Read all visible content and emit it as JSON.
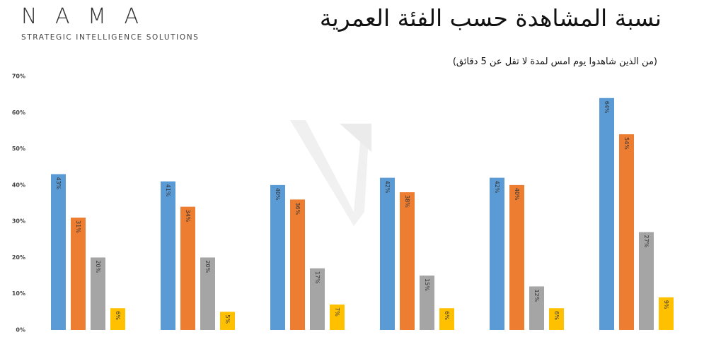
{
  "chart_data": {
    "type": "bar",
    "brand": "N A M A",
    "tagline": "STRATEGIC INTELLIGENCE SOLUTIONS",
    "title": "نسبة المشاهدة حسب الفئة العمرية",
    "subtitle": "(من الذين شاهدوا يوم امس لمدة لا تقل عن 5 دقائق)",
    "categories": [
      null,
      null,
      null,
      null,
      null,
      null
    ],
    "series": [
      {
        "color": "#5b9bd5",
        "values": [
          43,
          41,
          40,
          42,
          42,
          64
        ],
        "value_labels": [
          "43%",
          "41%",
          "40%",
          "42%",
          "42%",
          "64%"
        ]
      },
      {
        "color": "#ed7d31",
        "values": [
          31,
          34,
          36,
          38,
          40,
          54
        ],
        "value_labels": [
          "31%",
          "34%",
          "36%",
          "38%",
          "40%",
          "54%"
        ]
      },
      {
        "color": "#a5a5a5",
        "values": [
          20,
          20,
          17,
          15,
          12,
          27
        ],
        "value_labels": [
          "20%",
          "20%",
          "17%",
          "15%",
          "12%",
          "27%"
        ]
      },
      {
        "color": "#ffc000",
        "values": [
          6,
          5,
          7,
          6,
          6,
          9
        ],
        "value_labels": [
          "6%",
          "5%",
          "7%",
          "6%",
          "6%",
          "9%"
        ]
      }
    ],
    "ylim": [
      0,
      70
    ],
    "yticks": [
      {
        "value": 0,
        "label": "0%"
      },
      {
        "value": 10,
        "label": "10%"
      },
      {
        "value": 20,
        "label": "20%"
      },
      {
        "value": 30,
        "label": "30%"
      },
      {
        "value": 40,
        "label": "40%"
      },
      {
        "value": 50,
        "label": "50%"
      },
      {
        "value": 60,
        "label": "60%"
      },
      {
        "value": 70,
        "label": "70%"
      }
    ],
    "grid": false
  }
}
